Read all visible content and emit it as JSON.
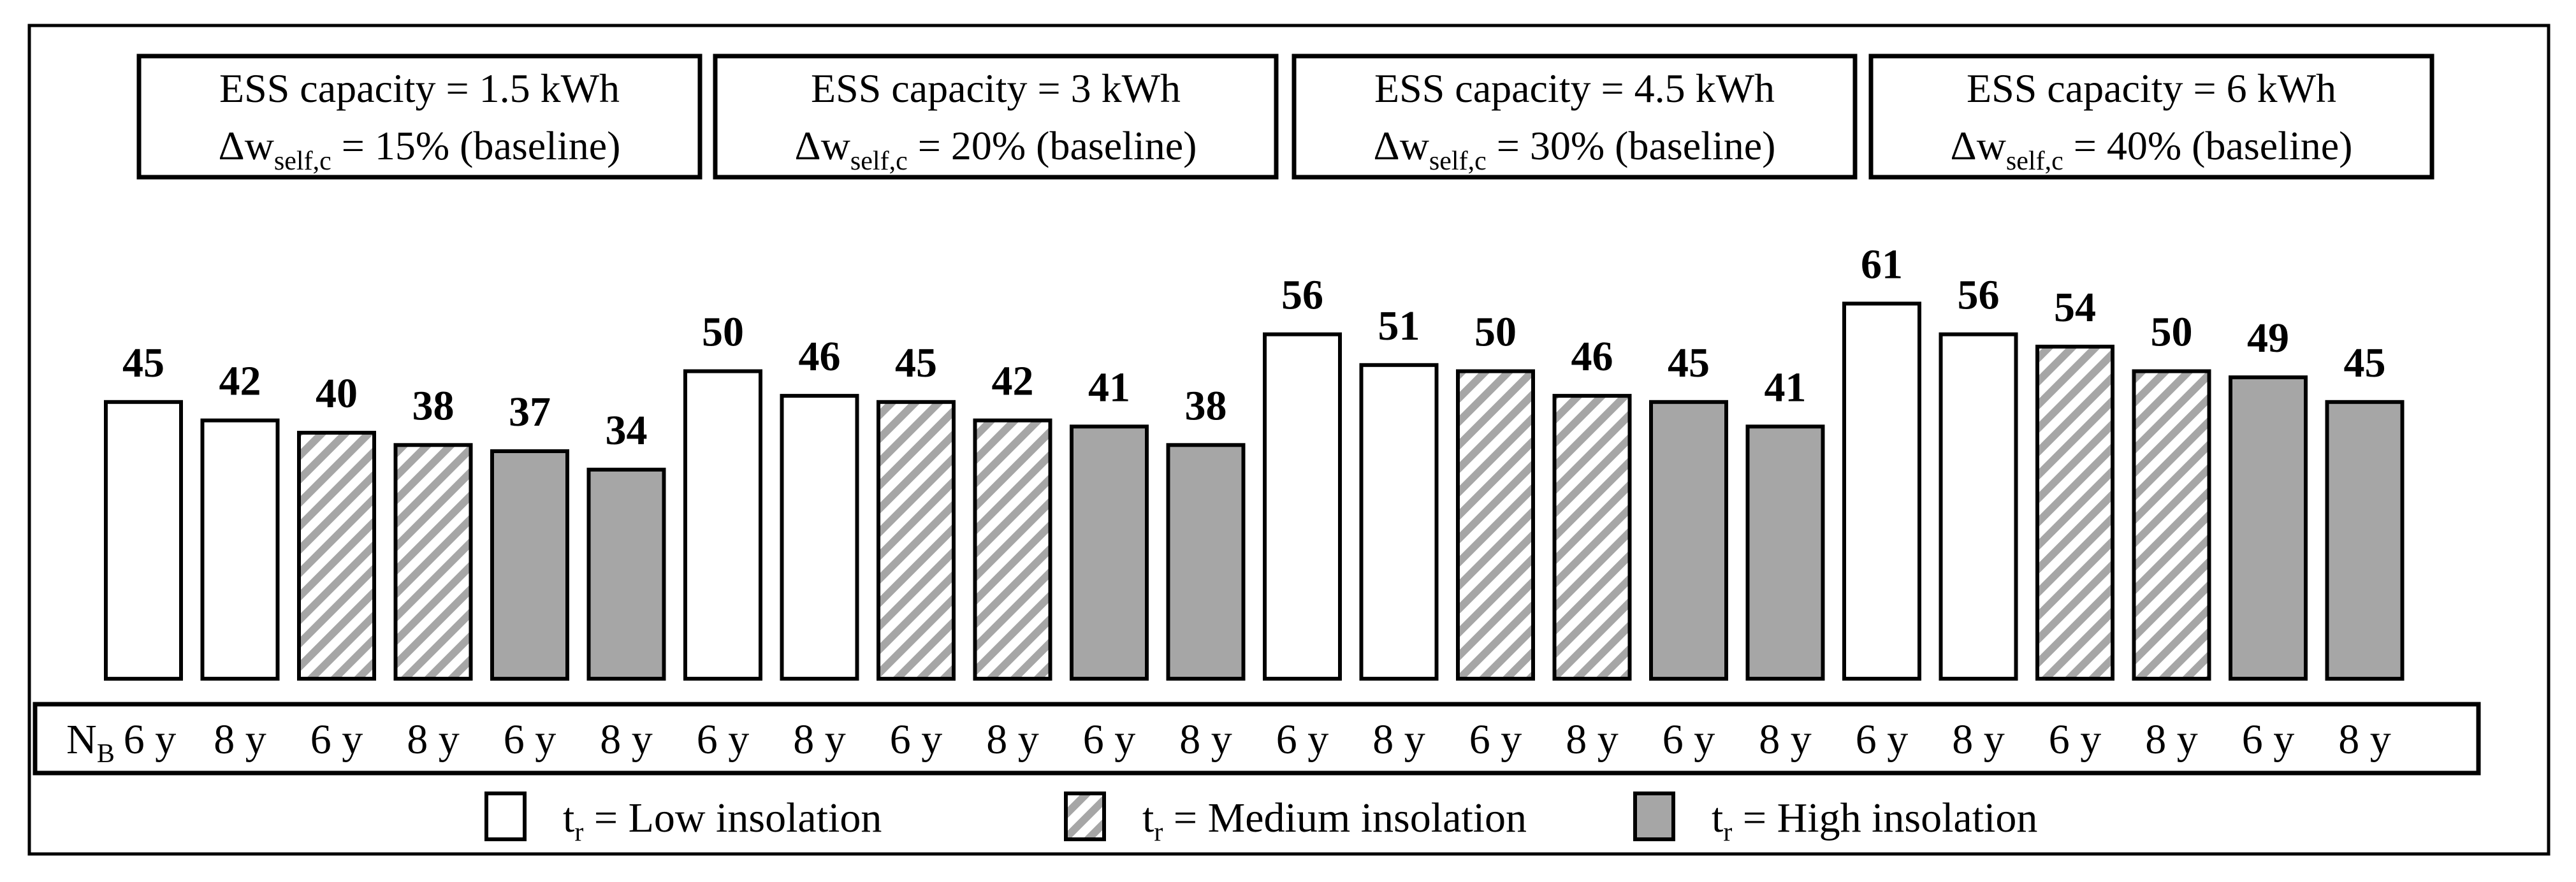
{
  "chart_data": {
    "type": "bar",
    "title": "",
    "xlabel": "",
    "ylabel": "",
    "ylim": [
      0,
      70
    ],
    "row_label_main": "N",
    "row_label_sub": "B",
    "categories": [
      "6 y",
      "8 y",
      "6 y",
      "8 y",
      "6 y",
      "8 y",
      "6 y",
      "8 y",
      "6 y",
      "8 y",
      "6 y",
      "8 y",
      "6 y",
      "8 y",
      "6 y",
      "8 y",
      "6 y",
      "8 y",
      "6 y",
      "8 y",
      "6 y",
      "8 y",
      "6 y",
      "8 y"
    ],
    "values": [
      45,
      42,
      40,
      38,
      37,
      34,
      50,
      46,
      45,
      42,
      41,
      38,
      56,
      51,
      50,
      46,
      45,
      41,
      61,
      56,
      54,
      50,
      49,
      45
    ],
    "insolation": [
      "low",
      "low",
      "med",
      "med",
      "high",
      "high",
      "low",
      "low",
      "med",
      "med",
      "high",
      "high",
      "low",
      "low",
      "med",
      "med",
      "high",
      "high",
      "low",
      "low",
      "med",
      "med",
      "high",
      "high"
    ],
    "groups": [
      {
        "line1": "ESS capacity = 1.5 kWh",
        "delta": "Δw",
        "sub": "self,c",
        "line2_tail": " = 15% (baseline)"
      },
      {
        "line1": "ESS capacity = 3 kWh",
        "delta": "Δw",
        "sub": "self,c",
        "line2_tail": " = 20% (baseline)"
      },
      {
        "line1": "ESS capacity = 4.5 kWh",
        "delta": "Δw",
        "sub": "self,c",
        "line2_tail": " = 30% (baseline)"
      },
      {
        "line1": "ESS capacity = 6 kWh",
        "delta": "Δw",
        "sub": "self,c",
        "line2_tail": " = 40% (baseline)"
      }
    ],
    "legend": [
      {
        "key": "low",
        "main": "t",
        "sub": "r",
        "tail": " = Low insolation"
      },
      {
        "key": "med",
        "main": "t",
        "sub": "r",
        "tail": " = Medium insolation"
      },
      {
        "key": "high",
        "main": "t",
        "sub": "r",
        "tail": " = High insolation"
      }
    ],
    "colors": {
      "low": "#ffffff",
      "high": "#a6a6a6",
      "hatch_line": "#a6a6a6",
      "stroke": "#000000"
    }
  }
}
